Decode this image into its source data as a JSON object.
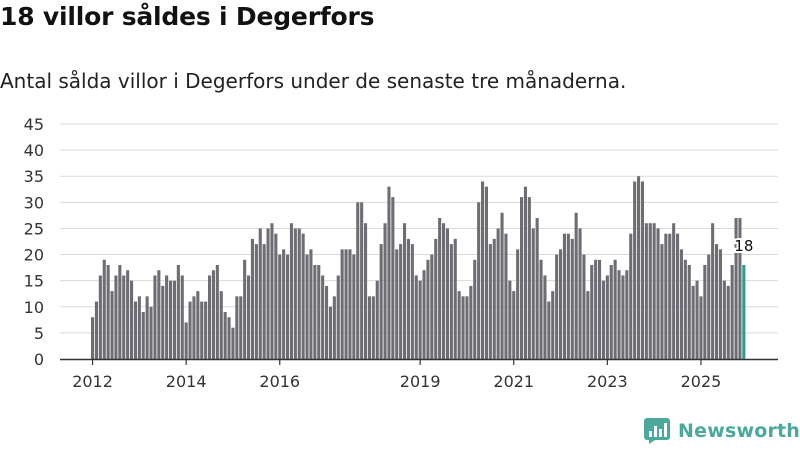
{
  "header": {
    "title": "18 villor såldes i Degerfors",
    "subtitle": "Antal sålda villor i Degerfors under de senaste tre månaderna."
  },
  "brand": {
    "name": "Newsworthy",
    "color": "#4aa89c"
  },
  "colors": {
    "bar": "#6e6d73",
    "highlight": "#2a9d8f",
    "grid": "#d9d9d9",
    "axis": "#333333",
    "text": "#333333"
  },
  "chart_data": {
    "type": "bar",
    "title": "18 villor såldes i Degerfors",
    "subtitle": "Antal sålda villor i Degerfors under de senaste tre månaderna.",
    "xlabel": "",
    "ylabel": "",
    "ylim": [
      0,
      45
    ],
    "yticks": [
      "0",
      "5",
      "10",
      "15",
      "20",
      "25",
      "30",
      "35",
      "40",
      "45"
    ],
    "x_tick_labels": [
      {
        "label": "2012",
        "index": 0
      },
      {
        "label": "2014",
        "index": 24
      },
      {
        "label": "2016",
        "index": 48
      },
      {
        "label": "2019",
        "index": 84
      },
      {
        "label": "2021",
        "index": 108
      },
      {
        "label": "2023",
        "index": 132
      },
      {
        "label": "2025",
        "index": 156
      }
    ],
    "grid": true,
    "highlight_label": "18",
    "values": [
      8,
      11,
      16,
      19,
      18,
      13,
      16,
      18,
      16,
      17,
      15,
      11,
      12,
      9,
      12,
      10,
      16,
      17,
      14,
      16,
      15,
      15,
      18,
      16,
      7,
      11,
      12,
      13,
      11,
      11,
      16,
      17,
      18,
      13,
      9,
      8,
      6,
      12,
      12,
      19,
      16,
      23,
      22,
      25,
      22,
      25,
      26,
      24,
      20,
      21,
      20,
      26,
      25,
      25,
      24,
      20,
      21,
      18,
      18,
      16,
      14,
      10,
      12,
      16,
      21,
      21,
      21,
      20,
      30,
      30,
      26,
      12,
      12,
      15,
      22,
      26,
      33,
      31,
      21,
      22,
      26,
      23,
      22,
      16,
      15,
      17,
      19,
      20,
      23,
      27,
      26,
      25,
      22,
      23,
      13,
      12,
      12,
      14,
      19,
      30,
      34,
      33,
      22,
      23,
      25,
      28,
      24,
      15,
      13,
      21,
      31,
      33,
      31,
      25,
      27,
      19,
      16,
      11,
      13,
      20,
      21,
      24,
      24,
      23,
      28,
      25,
      20,
      13,
      18,
      19,
      19,
      15,
      16,
      18,
      19,
      17,
      16,
      17,
      24,
      34,
      35,
      34,
      26,
      26,
      26,
      25,
      22,
      24,
      24,
      26,
      24,
      21,
      19,
      18,
      14,
      15,
      12,
      18,
      20,
      26,
      22,
      21,
      15,
      14,
      18,
      27,
      27,
      18
    ]
  }
}
